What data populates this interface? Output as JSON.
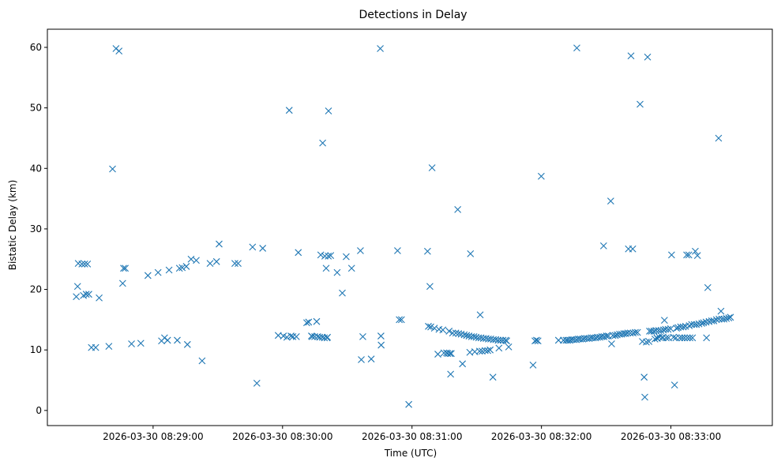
{
  "chart_data": {
    "type": "scatter",
    "title": "Detections in Delay",
    "xlabel": "Time (UTC)",
    "ylabel": "Bistatic Delay (km)",
    "marker": "x",
    "color": "#1f77b4",
    "grid": false,
    "x_unit": "seconds after 2026-03-30 08:28:00 UTC",
    "xlim": [
      11,
      347
    ],
    "ylim": [
      -2.5,
      63
    ],
    "x_ticks": [
      {
        "value": 60,
        "label": "2026-03-30 08:29:00"
      },
      {
        "value": 120,
        "label": "2026-03-30 08:30:00"
      },
      {
        "value": 180,
        "label": "2026-03-30 08:31:00"
      },
      {
        "value": 240,
        "label": "2026-03-30 08:32:00"
      },
      {
        "value": 300,
        "label": "2026-03-30 08:33:00"
      }
    ],
    "y_ticks": [
      {
        "value": 0,
        "label": "0"
      },
      {
        "value": 10,
        "label": "10"
      },
      {
        "value": 20,
        "label": "20"
      },
      {
        "value": 30,
        "label": "30"
      },
      {
        "value": 40,
        "label": "40"
      },
      {
        "value": 50,
        "label": "50"
      },
      {
        "value": 60,
        "label": "60"
      }
    ],
    "points": [
      [
        24.4,
        18.8
      ],
      [
        25.0,
        20.5
      ],
      [
        25.3,
        24.3
      ],
      [
        27.0,
        24.2
      ],
      [
        27.7,
        19.0
      ],
      [
        28.3,
        24.2
      ],
      [
        29.0,
        19.2
      ],
      [
        29.6,
        24.2
      ],
      [
        30.2,
        19.2
      ],
      [
        31.4,
        10.4
      ],
      [
        33.4,
        10.4
      ],
      [
        35.0,
        18.6
      ],
      [
        39.5,
        10.6
      ],
      [
        41.2,
        39.9
      ],
      [
        42.8,
        59.8
      ],
      [
        44.2,
        59.4
      ],
      [
        45.9,
        21.0
      ],
      [
        46.3,
        23.5
      ],
      [
        47.1,
        23.5
      ],
      [
        50.0,
        11.0
      ],
      [
        54.3,
        11.1
      ],
      [
        57.6,
        22.3
      ],
      [
        62.3,
        22.8
      ],
      [
        63.9,
        11.5
      ],
      [
        65.3,
        12.0
      ],
      [
        66.7,
        11.6
      ],
      [
        67.4,
        23.2
      ],
      [
        71.2,
        11.6
      ],
      [
        72.2,
        23.5
      ],
      [
        73.5,
        23.6
      ],
      [
        75.4,
        23.8
      ],
      [
        75.9,
        10.9
      ],
      [
        77.6,
        25.0
      ],
      [
        80.0,
        24.8
      ],
      [
        82.7,
        8.2
      ],
      [
        86.4,
        24.3
      ],
      [
        89.4,
        24.6
      ],
      [
        90.6,
        27.5
      ],
      [
        97.9,
        24.3
      ],
      [
        99.4,
        24.3
      ],
      [
        106.1,
        27.0
      ],
      [
        108.1,
        4.5
      ],
      [
        110.8,
        26.8
      ],
      [
        118.0,
        12.4
      ],
      [
        120.4,
        12.3
      ],
      [
        122.0,
        12.1
      ],
      [
        123.1,
        49.6
      ],
      [
        123.9,
        12.3
      ],
      [
        124.8,
        12.2
      ],
      [
        126.4,
        12.2
      ],
      [
        127.3,
        26.1
      ],
      [
        131.2,
        14.5
      ],
      [
        132.1,
        14.6
      ],
      [
        133.4,
        12.3
      ],
      [
        133.8,
        12.2
      ],
      [
        134.9,
        12.2
      ],
      [
        135.8,
        14.7
      ],
      [
        136.3,
        12.2
      ],
      [
        137.2,
        12.1
      ],
      [
        137.7,
        25.7
      ],
      [
        138.4,
        12.1
      ],
      [
        138.6,
        44.2
      ],
      [
        139.4,
        12.0
      ],
      [
        139.6,
        25.5
      ],
      [
        140.2,
        23.5
      ],
      [
        140.6,
        12.0
      ],
      [
        140.8,
        12.1
      ],
      [
        141.2,
        25.5
      ],
      [
        141.3,
        49.5
      ],
      [
        142.3,
        25.6
      ],
      [
        145.3,
        22.8
      ],
      [
        147.7,
        19.4
      ],
      [
        149.5,
        25.4
      ],
      [
        152.0,
        23.5
      ],
      [
        156.1,
        26.4
      ],
      [
        156.5,
        8.4
      ],
      [
        157.2,
        12.2
      ],
      [
        161.1,
        8.5
      ],
      [
        165.3,
        59.8
      ],
      [
        165.6,
        12.3
      ],
      [
        165.7,
        10.8
      ],
      [
        173.3,
        26.4
      ],
      [
        174.1,
        15.0
      ],
      [
        175.1,
        15.0
      ],
      [
        178.5,
        1.0
      ],
      [
        187.2,
        26.3
      ],
      [
        187.6,
        13.9
      ],
      [
        188.3,
        20.5
      ],
      [
        188.7,
        13.8
      ],
      [
        189.3,
        40.1
      ],
      [
        190.4,
        13.6
      ],
      [
        192.0,
        9.3
      ],
      [
        192.5,
        13.4
      ],
      [
        194.3,
        13.3
      ],
      [
        194.8,
        9.5
      ],
      [
        196.0,
        9.5
      ],
      [
        196.6,
        9.4
      ],
      [
        197.2,
        13.1
      ],
      [
        197.6,
        9.4
      ],
      [
        197.9,
        6.0
      ],
      [
        198.2,
        9.4
      ],
      [
        198.8,
        12.8
      ],
      [
        200.3,
        12.8
      ],
      [
        201.2,
        33.2
      ],
      [
        201.6,
        12.7
      ],
      [
        202.8,
        12.6
      ],
      [
        203.4,
        7.7
      ],
      [
        204.2,
        12.5
      ],
      [
        205.3,
        12.4
      ],
      [
        206.4,
        12.3
      ],
      [
        206.8,
        9.6
      ],
      [
        207.1,
        25.9
      ],
      [
        207.6,
        12.2
      ],
      [
        208.7,
        12.2
      ],
      [
        209.1,
        9.7
      ],
      [
        209.7,
        12.1
      ],
      [
        210.9,
        12.0
      ],
      [
        211.3,
        9.8
      ],
      [
        211.6,
        15.8
      ],
      [
        212.0,
        12.0
      ],
      [
        212.5,
        9.8
      ],
      [
        213.1,
        11.9
      ],
      [
        213.9,
        9.9
      ],
      [
        214.3,
        11.9
      ],
      [
        215.1,
        9.9
      ],
      [
        215.4,
        11.8
      ],
      [
        216.2,
        10.0
      ],
      [
        216.5,
        11.8
      ],
      [
        217.5,
        5.5
      ],
      [
        217.7,
        11.7
      ],
      [
        218.8,
        11.7
      ],
      [
        219.9,
        11.6
      ],
      [
        220.3,
        10.3
      ],
      [
        221.1,
        11.6
      ],
      [
        222.2,
        11.6
      ],
      [
        223.4,
        11.6
      ],
      [
        223.9,
        11.5
      ],
      [
        224.8,
        10.5
      ],
      [
        236.1,
        7.5
      ],
      [
        237.0,
        11.5
      ],
      [
        237.7,
        11.6
      ],
      [
        238.4,
        11.5
      ],
      [
        239.9,
        38.7
      ],
      [
        247.9,
        11.6
      ],
      [
        250.2,
        11.6
      ],
      [
        251.4,
        11.6
      ],
      [
        252.2,
        11.6
      ],
      [
        253.2,
        11.6
      ],
      [
        254.1,
        11.7
      ],
      [
        255.0,
        11.7
      ],
      [
        256.1,
        11.7
      ],
      [
        256.4,
        59.9
      ],
      [
        257.1,
        11.8
      ],
      [
        258.0,
        11.8
      ],
      [
        259.1,
        11.8
      ],
      [
        260.0,
        11.9
      ],
      [
        261.0,
        11.9
      ],
      [
        262.1,
        11.9
      ],
      [
        263.1,
        12.0
      ],
      [
        264.0,
        12.0
      ],
      [
        265.1,
        12.0
      ],
      [
        266.0,
        12.1
      ],
      [
        267.1,
        12.1
      ],
      [
        268.0,
        12.2
      ],
      [
        268.8,
        27.2
      ],
      [
        269.0,
        12.2
      ],
      [
        270.1,
        12.3
      ],
      [
        271.0,
        12.3
      ],
      [
        272.1,
        34.6
      ],
      [
        272.5,
        11.0
      ],
      [
        273.1,
        12.4
      ],
      [
        274.2,
        12.4
      ],
      [
        275.1,
        12.5
      ],
      [
        276.2,
        12.6
      ],
      [
        277.2,
        12.6
      ],
      [
        278.2,
        12.7
      ],
      [
        279.1,
        12.7
      ],
      [
        280.0,
        12.8
      ],
      [
        280.3,
        26.7
      ],
      [
        281.2,
        12.8
      ],
      [
        281.5,
        58.6
      ],
      [
        282.3,
        26.7
      ],
      [
        282.5,
        12.8
      ],
      [
        283.5,
        12.9
      ],
      [
        284.5,
        12.9
      ],
      [
        285.7,
        50.6
      ],
      [
        286.8,
        11.4
      ],
      [
        287.6,
        5.5
      ],
      [
        287.9,
        2.2
      ],
      [
        288.6,
        11.3
      ],
      [
        289.2,
        58.4
      ],
      [
        289.8,
        11.4
      ],
      [
        290.1,
        13.1
      ],
      [
        291.0,
        13.1
      ],
      [
        292.1,
        13.1
      ],
      [
        292.6,
        11.8
      ],
      [
        293.1,
        13.2
      ],
      [
        293.5,
        12.0
      ],
      [
        293.7,
        11.9
      ],
      [
        294.3,
        13.2
      ],
      [
        294.6,
        12.1
      ],
      [
        295.4,
        13.2
      ],
      [
        295.9,
        12.0
      ],
      [
        296.3,
        12.1
      ],
      [
        296.6,
        13.3
      ],
      [
        297.0,
        14.9
      ],
      [
        297.5,
        13.4
      ],
      [
        297.8,
        12.0
      ],
      [
        298.7,
        13.4
      ],
      [
        298.9,
        12.0
      ],
      [
        299.9,
        13.5
      ],
      [
        300.3,
        25.7
      ],
      [
        301.2,
        12.1
      ],
      [
        301.7,
        4.2
      ],
      [
        302.3,
        12.0
      ],
      [
        302.6,
        13.6
      ],
      [
        303.3,
        13.7
      ],
      [
        304.1,
        12.0
      ],
      [
        304.5,
        13.8
      ],
      [
        305.2,
        12.0
      ],
      [
        305.7,
        13.8
      ],
      [
        306.3,
        12.0
      ],
      [
        306.8,
        13.9
      ],
      [
        307.3,
        25.7
      ],
      [
        307.6,
        12.0
      ],
      [
        308.3,
        25.7
      ],
      [
        308.5,
        14.0
      ],
      [
        308.8,
        12.0
      ],
      [
        309.6,
        14.2
      ],
      [
        310.0,
        12.0
      ],
      [
        310.8,
        14.2
      ],
      [
        311.3,
        26.3
      ],
      [
        311.8,
        14.2
      ],
      [
        312.3,
        25.6
      ],
      [
        313.0,
        14.3
      ],
      [
        314.3,
        14.4
      ],
      [
        315.1,
        14.5
      ],
      [
        316.3,
        14.6
      ],
      [
        316.5,
        12.0
      ],
      [
        317.1,
        20.3
      ],
      [
        317.7,
        14.7
      ],
      [
        318.9,
        14.8
      ],
      [
        319.9,
        14.8
      ],
      [
        321.1,
        15.0
      ],
      [
        322.1,
        45.0
      ],
      [
        322.3,
        15.1
      ],
      [
        323.2,
        16.4
      ],
      [
        323.6,
        15.1
      ],
      [
        324.6,
        15.1
      ],
      [
        325.7,
        15.2
      ],
      [
        326.8,
        15.3
      ],
      [
        327.6,
        15.4
      ]
    ]
  }
}
